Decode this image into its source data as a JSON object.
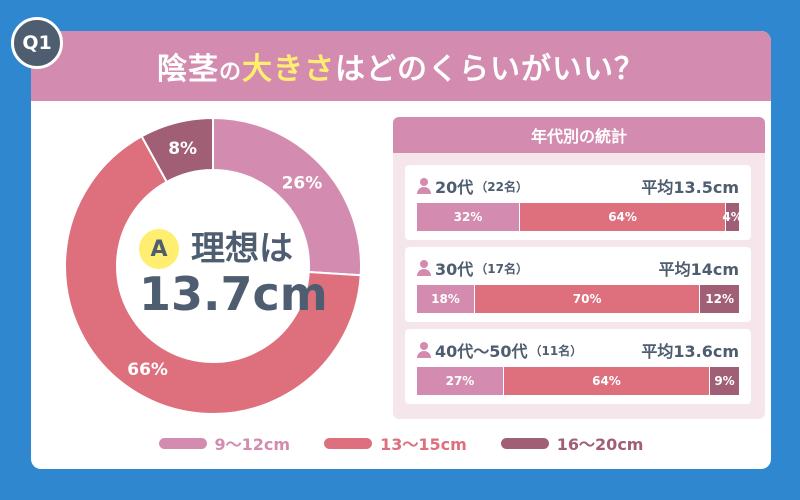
{
  "question_badge": "Q1",
  "title": {
    "part1": "陰茎",
    "part2": "の",
    "part3": "大きさ",
    "part4": "はどのくらいがいい？"
  },
  "answer": {
    "badge": "A",
    "line1": "理想は",
    "value": "13.7cm"
  },
  "colors": {
    "c1": "#d38caf",
    "c2": "#de707e",
    "c3": "#a05f74"
  },
  "chart_data": [
    {
      "type": "pie",
      "labels": [
        "9〜12cm",
        "13〜15cm",
        "16〜20cm"
      ],
      "values": [
        26,
        66,
        8
      ],
      "data_labels": [
        "26%",
        "66%",
        "8%"
      ]
    },
    {
      "type": "bar",
      "title": "年代別の統計",
      "categories": [
        "20代",
        "30代",
        "40代〜50代"
      ],
      "series": [
        {
          "name": "9〜12cm",
          "values": [
            32,
            18,
            27
          ]
        },
        {
          "name": "13〜15cm",
          "values": [
            64,
            70,
            64
          ]
        },
        {
          "name": "16〜20cm",
          "values": [
            4,
            12,
            9
          ]
        }
      ]
    }
  ],
  "stats": {
    "title": "年代別の統計",
    "groups": [
      {
        "label": "20代",
        "count": "（22名）",
        "avg": "平均13.5cm",
        "values": [
          32,
          64,
          4
        ],
        "labels": [
          "32%",
          "64%",
          "4%"
        ]
      },
      {
        "label": "30代",
        "count": "（17名）",
        "avg": "平均14cm",
        "values": [
          18,
          70,
          12
        ],
        "labels": [
          "18%",
          "70%",
          "12%"
        ]
      },
      {
        "label": "40代〜50代",
        "count": "（11名）",
        "avg": "平均13.6cm",
        "values": [
          27,
          64,
          9
        ],
        "labels": [
          "27%",
          "64%",
          "9%"
        ]
      }
    ]
  },
  "legend": [
    {
      "label": "9〜12cm",
      "color": "#d38caf"
    },
    {
      "label": "13〜15cm",
      "color": "#de707e"
    },
    {
      "label": "16〜20cm",
      "color": "#a05f74"
    }
  ]
}
